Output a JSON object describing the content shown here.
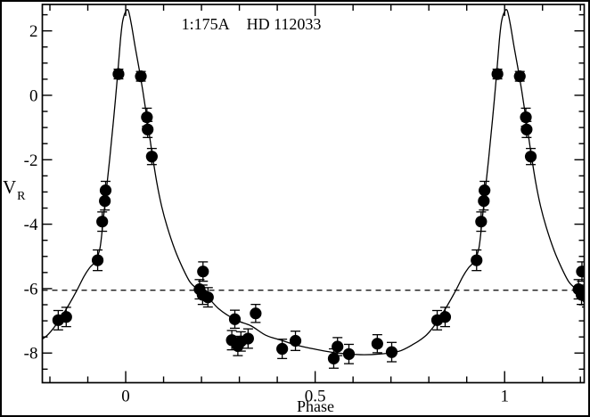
{
  "window": {
    "background": "#ffffff",
    "border_color": "#000000"
  },
  "chart_data": {
    "type": "scatter",
    "title": "1:175A  HD 112033",
    "title_parts": {
      "left": "1:175A",
      "right": "HD 112033"
    },
    "xlabel": "Phase",
    "ylabel": {
      "main": "V",
      "sub": "R"
    },
    "xlim": [
      -0.22,
      1.21
    ],
    "ylim": [
      -8.92,
      2.82
    ],
    "grid": false,
    "legend": "none",
    "marker_color": "#000000",
    "line_color": "#000000",
    "x_major_ticks": [
      {
        "value": 0,
        "label": "0"
      },
      {
        "value": 0.5,
        "label": "0.5"
      },
      {
        "value": 1,
        "label": "1"
      }
    ],
    "x_minor_ticks": [
      -0.2,
      -0.1,
      0.1,
      0.2,
      0.3,
      0.4,
      0.6,
      0.7,
      0.8,
      0.9,
      1.1,
      1.2
    ],
    "y_major_ticks": [
      {
        "value": 2,
        "label": "2"
      },
      {
        "value": 0,
        "label": "0"
      },
      {
        "value": -2,
        "label": "-2"
      },
      {
        "value": -4,
        "label": "-4"
      },
      {
        "value": -6,
        "label": "-6"
      },
      {
        "value": -8,
        "label": "-8"
      }
    ],
    "y_minor_ticks": [
      2.5,
      1.5,
      1,
      0.5,
      -0.5,
      -1,
      -1.5,
      -2.5,
      -3,
      -3.5,
      -4.5,
      -5,
      -5.5,
      -6.5,
      -7,
      -7.5,
      -8.5
    ],
    "systemic_velocity_dashed_line": -6.05,
    "phase_fold_duplicate": true,
    "points": [
      {
        "phase": 0.822,
        "v": -6.98,
        "err": 0.3
      },
      {
        "phase": 0.843,
        "v": -6.88,
        "err": 0.3
      },
      {
        "phase": 0.926,
        "v": -5.12,
        "err": 0.32
      },
      {
        "phase": 0.938,
        "v": -3.92,
        "err": 0.3
      },
      {
        "phase": 0.945,
        "v": -3.28,
        "err": 0.28
      },
      {
        "phase": 0.947,
        "v": -2.95,
        "err": 0.28
      },
      {
        "phase": 0.981,
        "v": 0.66,
        "err": 0.15
      },
      {
        "phase": 0.04,
        "v": 0.59,
        "err": 0.15
      },
      {
        "phase": 0.056,
        "v": -0.68,
        "err": 0.28
      },
      {
        "phase": 0.058,
        "v": -1.06,
        "err": 0.25
      },
      {
        "phase": 0.069,
        "v": -1.9,
        "err": 0.25
      },
      {
        "phase": 0.195,
        "v": -6.02,
        "err": 0.3
      },
      {
        "phase": 0.203,
        "v": -6.19,
        "err": 0.3
      },
      {
        "phase": 0.204,
        "v": -5.47,
        "err": 0.3
      },
      {
        "phase": 0.217,
        "v": -6.27,
        "err": 0.3
      },
      {
        "phase": 0.28,
        "v": -7.6,
        "err": 0.3
      },
      {
        "phase": 0.288,
        "v": -6.95,
        "err": 0.28
      },
      {
        "phase": 0.296,
        "v": -7.78,
        "err": 0.3
      },
      {
        "phase": 0.304,
        "v": -7.64,
        "err": 0.3
      },
      {
        "phase": 0.323,
        "v": -7.55,
        "err": 0.3
      },
      {
        "phase": 0.343,
        "v": -6.77,
        "err": 0.28
      },
      {
        "phase": 0.413,
        "v": -7.87,
        "err": 0.3
      },
      {
        "phase": 0.448,
        "v": -7.62,
        "err": 0.3
      },
      {
        "phase": 0.549,
        "v": -8.17,
        "err": 0.3
      },
      {
        "phase": 0.559,
        "v": -7.8,
        "err": 0.28
      },
      {
        "phase": 0.589,
        "v": -8.03,
        "err": 0.3
      },
      {
        "phase": 0.664,
        "v": -7.71,
        "err": 0.28
      },
      {
        "phase": 0.702,
        "v": -7.97,
        "err": 0.3
      }
    ],
    "model_curve_keypoints": [
      [
        0.0,
        2.6
      ],
      [
        0.007,
        2.63
      ],
      [
        0.015,
        2.2
      ],
      [
        0.025,
        1.5
      ],
      [
        0.035,
        0.85
      ],
      [
        0.045,
        0.15
      ],
      [
        0.056,
        -0.7
      ],
      [
        0.069,
        -1.75
      ],
      [
        0.082,
        -2.7
      ],
      [
        0.095,
        -3.45
      ],
      [
        0.11,
        -4.1
      ],
      [
        0.13,
        -4.8
      ],
      [
        0.15,
        -5.35
      ],
      [
        0.17,
        -5.8
      ],
      [
        0.19,
        -6.02
      ],
      [
        0.21,
        -6.17
      ],
      [
        0.245,
        -6.62
      ],
      [
        0.29,
        -6.97
      ],
      [
        0.33,
        -7.15
      ],
      [
        0.37,
        -7.45
      ],
      [
        0.41,
        -7.6
      ],
      [
        0.45,
        -7.75
      ],
      [
        0.5,
        -7.88
      ],
      [
        0.56,
        -8.0
      ],
      [
        0.62,
        -8.05
      ],
      [
        0.67,
        -8.03
      ],
      [
        0.72,
        -7.95
      ],
      [
        0.76,
        -7.72
      ],
      [
        0.79,
        -7.48
      ],
      [
        0.81,
        -7.22
      ],
      [
        0.83,
        -6.88
      ],
      [
        0.85,
        -6.5
      ],
      [
        0.87,
        -6.08
      ],
      [
        0.89,
        -5.62
      ],
      [
        0.905,
        -5.35
      ],
      [
        0.92,
        -5.15
      ],
      [
        0.932,
        -4.75
      ],
      [
        0.94,
        -3.95
      ],
      [
        0.948,
        -3.05
      ],
      [
        0.958,
        -1.95
      ],
      [
        0.968,
        -0.75
      ],
      [
        0.978,
        0.55
      ],
      [
        0.986,
        1.7
      ],
      [
        0.992,
        2.3
      ],
      [
        1.0,
        2.6
      ]
    ]
  }
}
